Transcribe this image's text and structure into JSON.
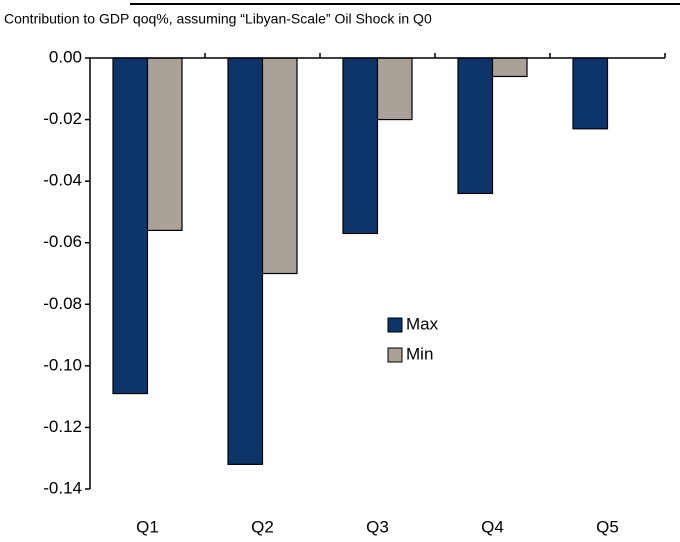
{
  "chart_data": {
    "type": "bar",
    "subtitle": "Contribution to GDP qoq%, assuming “Libyan-Scale” Oil Shock in Q0",
    "categories": [
      "Q1",
      "Q2",
      "Q3",
      "Q4",
      "Q5"
    ],
    "series": [
      {
        "name": "Max",
        "color": "#0d3569",
        "values": [
          -0.109,
          -0.132,
          -0.057,
          -0.044,
          -0.023
        ]
      },
      {
        "name": "Min",
        "color": "#aaa299",
        "values": [
          -0.056,
          -0.07,
          -0.02,
          -0.006,
          null
        ]
      }
    ],
    "ylim": [
      -0.14,
      0
    ],
    "yticks": [
      {
        "value": 0,
        "label": "0.00"
      },
      -0.02,
      -0.04,
      -0.06,
      -0.08,
      {
        "value": -0.1,
        "label": "-0.10"
      },
      -0.12,
      -0.14
    ],
    "legend": "center"
  }
}
